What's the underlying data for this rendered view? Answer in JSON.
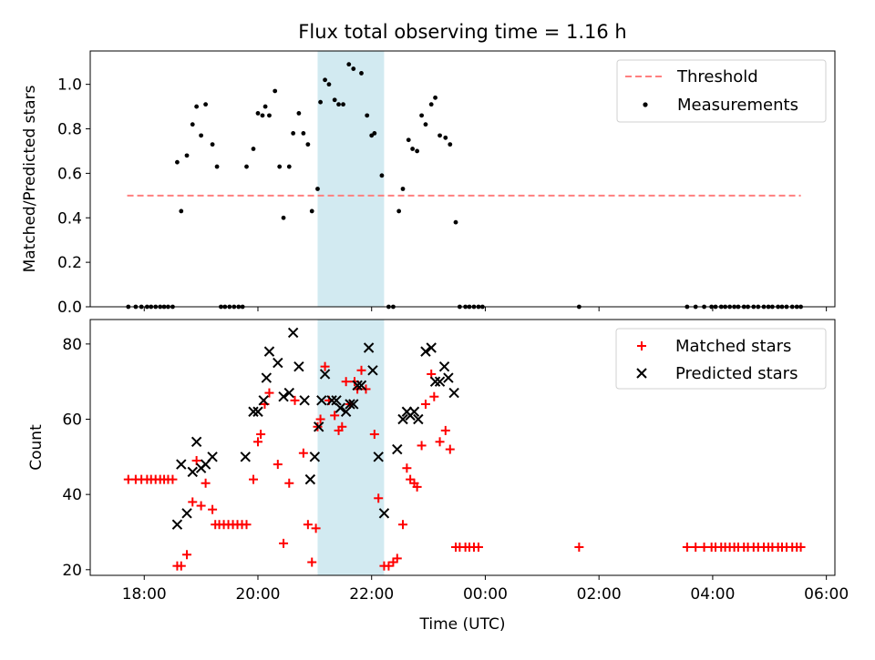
{
  "chart_data": [
    {
      "type": "scatter",
      "title": "Flux total observing time = 1.16 h",
      "ylabel": "Matched/Predicted stars",
      "ylim": [
        0,
        1.15
      ],
      "xlim_hours": [
        17.05,
        30.15
      ],
      "yticks": [
        0.0,
        0.2,
        0.4,
        0.6,
        0.8,
        1.0
      ],
      "yticklabels": [
        "0.0",
        "0.2",
        "0.4",
        "0.6",
        "0.8",
        "1.0"
      ],
      "legend_placement": "upper right",
      "shaded_span_hours": [
        21.05,
        22.22
      ],
      "shaded_color": "#add8e6",
      "threshold": {
        "name": "Threshold",
        "value": 0.5,
        "x_range": [
          17.7,
          29.55
        ],
        "color": "#ff7f7f",
        "style": "dashed"
      },
      "series": [
        {
          "name": "Measurements",
          "color": "#000000",
          "marker": "dot",
          "points": [
            [
              17.72,
              0
            ],
            [
              17.85,
              0
            ],
            [
              17.95,
              0
            ],
            [
              18.05,
              0
            ],
            [
              18.12,
              0
            ],
            [
              18.2,
              0
            ],
            [
              18.28,
              0
            ],
            [
              18.35,
              0
            ],
            [
              18.42,
              0
            ],
            [
              18.5,
              0
            ],
            [
              18.58,
              0.65
            ],
            [
              18.65,
              0.43
            ],
            [
              18.75,
              0.68
            ],
            [
              18.85,
              0.82
            ],
            [
              18.92,
              0.9
            ],
            [
              19.0,
              0.77
            ],
            [
              19.08,
              0.91
            ],
            [
              19.2,
              0.73
            ],
            [
              19.28,
              0.63
            ],
            [
              19.35,
              0
            ],
            [
              19.42,
              0
            ],
            [
              19.5,
              0
            ],
            [
              19.58,
              0
            ],
            [
              19.66,
              0
            ],
            [
              19.73,
              0
            ],
            [
              19.8,
              0.63
            ],
            [
              19.92,
              0.71
            ],
            [
              20.0,
              0.87
            ],
            [
              20.08,
              0.86
            ],
            [
              20.13,
              0.9
            ],
            [
              20.2,
              0.86
            ],
            [
              20.3,
              0.97
            ],
            [
              20.38,
              0.63
            ],
            [
              20.45,
              0.4
            ],
            [
              20.55,
              0.63
            ],
            [
              20.62,
              0.78
            ],
            [
              20.72,
              0.87
            ],
            [
              20.8,
              0.78
            ],
            [
              20.88,
              0.73
            ],
            [
              20.95,
              0.43
            ],
            [
              21.05,
              0.53
            ],
            [
              21.1,
              0.92
            ],
            [
              21.18,
              1.02
            ],
            [
              21.25,
              1.0
            ],
            [
              21.35,
              0.93
            ],
            [
              21.42,
              0.91
            ],
            [
              21.5,
              0.91
            ],
            [
              21.6,
              1.09
            ],
            [
              21.68,
              1.07
            ],
            [
              21.82,
              1.05
            ],
            [
              21.92,
              0.86
            ],
            [
              22.0,
              0.77
            ],
            [
              22.05,
              0.78
            ],
            [
              22.18,
              0.59
            ],
            [
              22.3,
              0
            ],
            [
              22.38,
              0
            ],
            [
              22.48,
              0.43
            ],
            [
              22.55,
              0.53
            ],
            [
              22.65,
              0.75
            ],
            [
              22.72,
              0.71
            ],
            [
              22.8,
              0.7
            ],
            [
              22.88,
              0.86
            ],
            [
              22.95,
              0.82
            ],
            [
              23.05,
              0.91
            ],
            [
              23.12,
              0.94
            ],
            [
              23.2,
              0.77
            ],
            [
              23.3,
              0.76
            ],
            [
              23.38,
              0.73
            ],
            [
              23.48,
              0.38
            ],
            [
              23.55,
              0
            ],
            [
              23.65,
              0
            ],
            [
              23.72,
              0
            ],
            [
              23.8,
              0
            ],
            [
              23.88,
              0
            ],
            [
              23.95,
              0
            ],
            [
              25.65,
              0
            ],
            [
              27.55,
              0
            ],
            [
              27.7,
              0
            ],
            [
              27.85,
              0
            ],
            [
              27.98,
              0
            ],
            [
              28.05,
              0
            ],
            [
              28.15,
              0
            ],
            [
              28.22,
              0
            ],
            [
              28.3,
              0
            ],
            [
              28.38,
              0
            ],
            [
              28.45,
              0
            ],
            [
              28.55,
              0
            ],
            [
              28.62,
              0
            ],
            [
              28.72,
              0
            ],
            [
              28.8,
              0
            ],
            [
              28.9,
              0
            ],
            [
              28.98,
              0
            ],
            [
              29.05,
              0
            ],
            [
              29.15,
              0
            ],
            [
              29.22,
              0
            ],
            [
              29.3,
              0
            ],
            [
              29.4,
              0
            ],
            [
              29.48,
              0
            ],
            [
              29.55,
              0
            ]
          ]
        }
      ]
    },
    {
      "type": "scatter",
      "xlabel": "Time (UTC)",
      "ylabel": "Count",
      "ylim": [
        18.5,
        86.5
      ],
      "xlim_hours": [
        17.05,
        30.15
      ],
      "yticks": [
        20,
        40,
        60,
        80
      ],
      "yticklabels": [
        "20",
        "40",
        "60",
        "80"
      ],
      "xticks_hours": [
        18,
        20,
        22,
        24,
        26,
        28,
        30
      ],
      "xticklabels": [
        "18:00",
        "20:00",
        "22:00",
        "00:00",
        "02:00",
        "04:00",
        "06:00"
      ],
      "legend_placement": "upper right",
      "shaded_span_hours": [
        21.05,
        22.22
      ],
      "shaded_color": "#add8e6",
      "series": [
        {
          "name": "Matched stars",
          "color": "#ff0000",
          "marker": "plus",
          "points": [
            [
              17.72,
              44
            ],
            [
              17.85,
              44
            ],
            [
              17.95,
              44
            ],
            [
              18.05,
              44
            ],
            [
              18.12,
              44
            ],
            [
              18.2,
              44
            ],
            [
              18.28,
              44
            ],
            [
              18.35,
              44
            ],
            [
              18.42,
              44
            ],
            [
              18.5,
              44
            ],
            [
              18.58,
              21
            ],
            [
              18.65,
              21
            ],
            [
              18.75,
              24
            ],
            [
              18.85,
              38
            ],
            [
              18.92,
              49
            ],
            [
              19.0,
              37
            ],
            [
              19.08,
              43
            ],
            [
              19.2,
              36
            ],
            [
              19.25,
              32
            ],
            [
              19.32,
              32
            ],
            [
              19.4,
              32
            ],
            [
              19.48,
              32
            ],
            [
              19.56,
              32
            ],
            [
              19.64,
              32
            ],
            [
              19.72,
              32
            ],
            [
              19.8,
              32
            ],
            [
              19.92,
              44
            ],
            [
              20.0,
              54
            ],
            [
              20.05,
              56
            ],
            [
              20.12,
              64
            ],
            [
              20.2,
              67
            ],
            [
              20.35,
              48
            ],
            [
              20.45,
              27
            ],
            [
              20.55,
              43
            ],
            [
              20.65,
              65
            ],
            [
              20.8,
              51
            ],
            [
              20.88,
              32
            ],
            [
              20.95,
              22
            ],
            [
              21.02,
              31
            ],
            [
              21.05,
              58
            ],
            [
              21.1,
              60
            ],
            [
              21.18,
              74
            ],
            [
              21.25,
              65
            ],
            [
              21.35,
              61
            ],
            [
              21.42,
              57
            ],
            [
              21.48,
              58
            ],
            [
              21.55,
              70
            ],
            [
              21.62,
              64
            ],
            [
              21.7,
              70
            ],
            [
              21.75,
              68
            ],
            [
              21.82,
              73
            ],
            [
              21.9,
              68
            ],
            [
              22.05,
              56
            ],
            [
              22.12,
              39
            ],
            [
              22.22,
              21
            ],
            [
              22.3,
              21
            ],
            [
              22.38,
              22
            ],
            [
              22.45,
              23
            ],
            [
              22.55,
              32
            ],
            [
              22.62,
              47
            ],
            [
              22.68,
              44
            ],
            [
              22.75,
              43
            ],
            [
              22.8,
              42
            ],
            [
              22.88,
              53
            ],
            [
              22.95,
              64
            ],
            [
              23.05,
              72
            ],
            [
              23.1,
              66
            ],
            [
              23.2,
              54
            ],
            [
              23.3,
              57
            ],
            [
              23.38,
              52
            ],
            [
              23.48,
              26
            ],
            [
              23.55,
              26
            ],
            [
              23.65,
              26
            ],
            [
              23.72,
              26
            ],
            [
              23.8,
              26
            ],
            [
              23.88,
              26
            ],
            [
              25.65,
              26
            ],
            [
              27.55,
              26
            ],
            [
              27.7,
              26
            ],
            [
              27.85,
              26
            ],
            [
              27.98,
              26
            ],
            [
              28.05,
              26
            ],
            [
              28.15,
              26
            ],
            [
              28.22,
              26
            ],
            [
              28.3,
              26
            ],
            [
              28.38,
              26
            ],
            [
              28.45,
              26
            ],
            [
              28.55,
              26
            ],
            [
              28.62,
              26
            ],
            [
              28.72,
              26
            ],
            [
              28.8,
              26
            ],
            [
              28.9,
              26
            ],
            [
              28.98,
              26
            ],
            [
              29.05,
              26
            ],
            [
              29.15,
              26
            ],
            [
              29.22,
              26
            ],
            [
              29.3,
              26
            ],
            [
              29.4,
              26
            ],
            [
              29.48,
              26
            ],
            [
              29.55,
              26
            ]
          ]
        },
        {
          "name": "Predicted stars",
          "color": "#000000",
          "marker": "x",
          "points": [
            [
              18.58,
              32
            ],
            [
              18.65,
              48
            ],
            [
              18.75,
              35
            ],
            [
              18.85,
              46
            ],
            [
              18.92,
              54
            ],
            [
              19.0,
              47
            ],
            [
              19.08,
              48
            ],
            [
              19.2,
              50
            ],
            [
              19.78,
              50
            ],
            [
              19.92,
              62
            ],
            [
              20.0,
              62
            ],
            [
              20.1,
              65
            ],
            [
              20.15,
              71
            ],
            [
              20.2,
              78
            ],
            [
              20.35,
              75
            ],
            [
              20.45,
              66
            ],
            [
              20.55,
              67
            ],
            [
              20.62,
              83
            ],
            [
              20.72,
              74
            ],
            [
              20.82,
              65
            ],
            [
              20.92,
              44
            ],
            [
              21.0,
              50
            ],
            [
              21.07,
              58
            ],
            [
              21.12,
              65
            ],
            [
              21.18,
              72
            ],
            [
              21.3,
              65
            ],
            [
              21.38,
              65
            ],
            [
              21.45,
              63
            ],
            [
              21.55,
              62
            ],
            [
              21.62,
              64
            ],
            [
              21.68,
              64
            ],
            [
              21.75,
              69
            ],
            [
              21.82,
              69
            ],
            [
              21.95,
              79
            ],
            [
              22.02,
              73
            ],
            [
              22.12,
              50
            ],
            [
              22.22,
              35
            ],
            [
              22.45,
              52
            ],
            [
              22.55,
              60
            ],
            [
              22.62,
              62
            ],
            [
              22.68,
              61
            ],
            [
              22.75,
              62
            ],
            [
              22.82,
              60
            ],
            [
              22.95,
              78
            ],
            [
              23.05,
              79
            ],
            [
              23.12,
              70
            ],
            [
              23.2,
              70
            ],
            [
              23.28,
              74
            ],
            [
              23.35,
              71
            ],
            [
              23.45,
              67
            ]
          ]
        }
      ]
    }
  ]
}
